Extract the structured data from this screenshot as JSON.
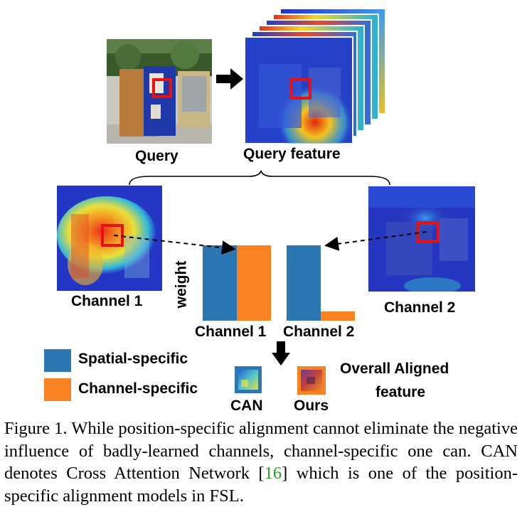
{
  "labels": {
    "query": "Query",
    "query_feature": "Query feature",
    "channel1_left": "Channel 1",
    "channel2_right": "Channel 2",
    "weight_axis": "weight",
    "bar_group1": "Channel 1",
    "bar_group2": "Channel 2",
    "legend_spatial": "Spatial-specific",
    "legend_channel": "Channel-specific",
    "can": "CAN",
    "ours": "Ours",
    "overall_line1": "Overall Aligned",
    "overall_line2": "feature"
  },
  "colors": {
    "spatial": "#2a77b3",
    "channel": "#fb8220",
    "highlight": "#e81010",
    "ref_link": "#22a022"
  },
  "chart_data": {
    "type": "bar",
    "categories": [
      "Channel 1",
      "Channel 2"
    ],
    "ylabel": "weight",
    "ylim": [
      0,
      1
    ],
    "series": [
      {
        "name": "Spatial-specific",
        "values": [
          1.0,
          1.0
        ]
      },
      {
        "name": "Channel-specific",
        "values": [
          1.0,
          0.12
        ]
      }
    ]
  },
  "caption": {
    "text_a": "Figure 1. While position-specific alignment cannot eliminate the negative influence of badly-learned channels, channel-specific one can. CAN denotes Cross Attention Network [",
    "ref": "16",
    "text_b": "] which is one of the position-specific alignment models in FSL."
  }
}
